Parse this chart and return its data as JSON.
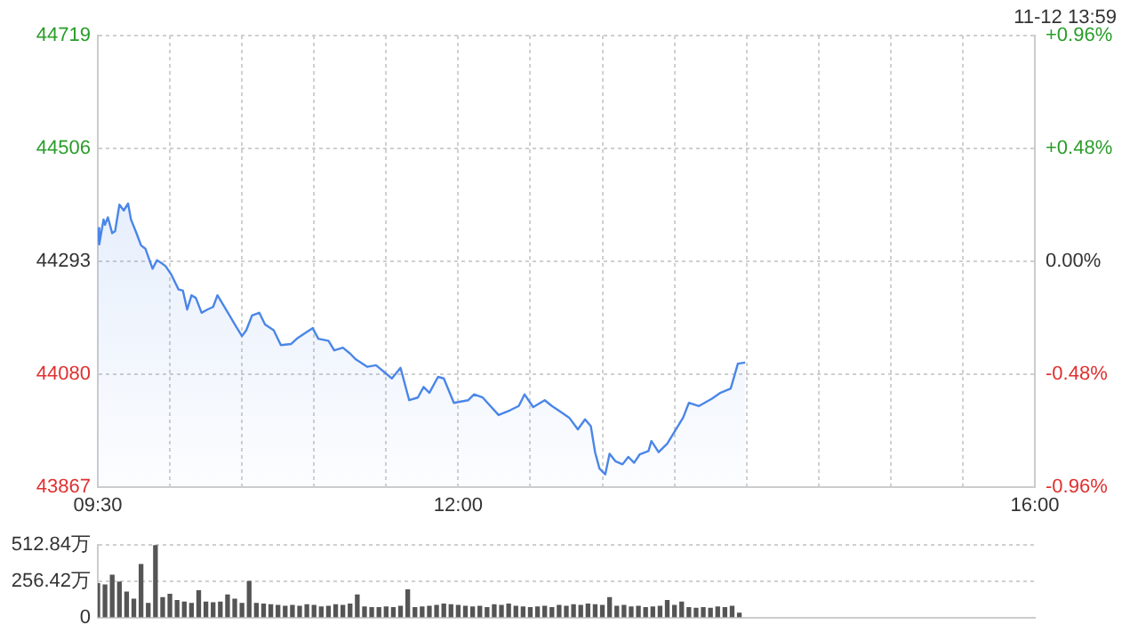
{
  "chart_data": [
    {
      "type": "area",
      "annotations": [
        "11-12 13:59"
      ],
      "x": [
        9.5,
        9.51,
        9.54,
        9.55,
        9.57,
        9.6,
        9.62,
        9.65,
        9.68,
        9.71,
        9.73,
        9.77,
        9.8,
        9.83,
        9.88,
        9.91,
        9.94,
        9.97,
        10.01,
        10.06,
        10.09,
        10.12,
        10.15,
        10.18,
        10.22,
        10.26,
        10.3,
        10.33,
        10.39,
        10.45,
        10.5,
        10.53,
        10.57,
        10.62,
        10.66,
        10.72,
        10.77,
        10.84,
        10.88,
        10.94,
        10.99,
        11.03,
        11.1,
        11.14,
        11.2,
        11.25,
        11.29,
        11.37,
        11.43,
        11.54,
        11.6,
        11.66,
        11.72,
        11.76,
        11.8,
        11.86,
        11.9,
        11.97,
        12.01,
        12.07,
        12.11,
        12.17,
        12.28,
        12.36,
        12.42,
        12.46,
        12.52,
        12.6,
        12.65,
        12.71,
        12.77,
        12.83,
        12.88,
        12.92,
        12.95,
        12.98,
        13.02,
        13.05,
        13.09,
        13.14,
        13.18,
        13.22,
        13.26,
        13.32,
        13.34,
        13.39,
        13.45,
        13.51,
        13.56,
        13.6,
        13.67,
        13.76,
        13.82,
        13.89,
        13.92,
        13.94,
        13.99
      ],
      "series": [
        {
          "color": "#4a86e8",
          "values": [
            44356,
            44325,
            44372,
            44362,
            44376,
            44346,
            44350,
            44400,
            44389,
            44402,
            44372,
            44345,
            44323,
            44317,
            44279,
            44295,
            44290,
            44284,
            44268,
            44240,
            44238,
            44202,
            44229,
            44224,
            44196,
            44202,
            44207,
            44229,
            44202,
            44174,
            44152,
            44163,
            44191,
            44196,
            44174,
            44163,
            44135,
            44137,
            44147,
            44158,
            44167,
            44147,
            44143,
            44125,
            44130,
            44119,
            44108,
            44094,
            44097,
            44072,
            44092,
            44031,
            44036,
            44056,
            44045,
            44075,
            44072,
            44026,
            44028,
            44031,
            44042,
            44036,
            44003,
            44012,
            44020,
            44042,
            44018,
            44031,
            44020,
            44009,
            43998,
            43976,
            43995,
            43982,
            43932,
            43902,
            43891,
            43930,
            43916,
            43910,
            43924,
            43913,
            43929,
            43935,
            43954,
            43933,
            43949,
            43976,
            43998,
            44026,
            44020,
            44034,
            44045,
            44053,
            44081,
            44100,
            44102
          ]
        }
      ],
      "xlim": [
        9.5,
        16
      ],
      "xticks": [
        {
          "value": 9.5,
          "label": "09:30"
        },
        {
          "value": 10,
          "label": null
        },
        {
          "value": 10.5,
          "label": null
        },
        {
          "value": 11,
          "label": null
        },
        {
          "value": 11.5,
          "label": null
        },
        {
          "value": 12,
          "label": "12:00"
        },
        {
          "value": 12.5,
          "label": null
        },
        {
          "value": 13,
          "label": null
        },
        {
          "value": 13.5,
          "label": null
        },
        {
          "value": 14,
          "label": null
        },
        {
          "value": 14.5,
          "label": null
        },
        {
          "value": 15,
          "label": null
        },
        {
          "value": 15.5,
          "label": null
        },
        {
          "value": 16,
          "label": "16:00"
        }
      ],
      "ylim": [
        43867,
        44719
      ],
      "yticks": [
        43867,
        44080,
        44293,
        44506,
        44719
      ],
      "y2lim": [
        -0.96,
        0.96
      ],
      "y2ticks": [
        {
          "value": -0.96,
          "label": "-0.96%"
        },
        {
          "value": -0.48,
          "label": "-0.48%"
        },
        {
          "value": 0,
          "label": "0.00%"
        },
        {
          "value": 0.48,
          "label": "+0.48%"
        },
        {
          "value": 0.96,
          "label": "+0.96%"
        }
      ],
      "grid": true,
      "marker": "none"
    },
    {
      "type": "bar",
      "tick_labels": "y",
      "grid": "y",
      "xlim": [
        9.5,
        16
      ],
      "x": [
        9.5,
        9.55,
        9.6,
        9.65,
        9.7,
        9.75,
        9.8,
        9.85,
        9.9,
        9.95,
        10,
        10.05,
        10.1,
        10.15,
        10.2,
        10.25,
        10.3,
        10.35,
        10.4,
        10.45,
        10.5,
        10.55,
        10.6,
        10.65,
        10.7,
        10.75,
        10.8,
        10.85,
        10.9,
        10.95,
        11,
        11.05,
        11.1,
        11.15,
        11.2,
        11.25,
        11.3,
        11.35,
        11.4,
        11.45,
        11.5,
        11.55,
        11.6,
        11.65,
        11.7,
        11.75,
        11.8,
        11.85,
        11.9,
        11.95,
        12,
        12.05,
        12.1,
        12.15,
        12.2,
        12.25,
        12.3,
        12.35,
        12.4,
        12.45,
        12.5,
        12.55,
        12.6,
        12.65,
        12.7,
        12.75,
        12.8,
        12.85,
        12.9,
        12.95,
        13,
        13.05,
        13.1,
        13.15,
        13.2,
        13.25,
        13.3,
        13.35,
        13.4,
        13.45,
        13.5,
        13.55,
        13.6,
        13.65,
        13.7,
        13.75,
        13.8,
        13.85,
        13.9,
        13.95
      ],
      "series": [
        {
          "color": "#555555",
          "values": [
            240,
            230,
            300,
            250,
            180,
            130,
            375,
            100,
            510,
            140,
            165,
            120,
            110,
            100,
            190,
            110,
            105,
            110,
            160,
            130,
            100,
            255,
            100,
            95,
            90,
            85,
            80,
            85,
            80,
            90,
            85,
            75,
            80,
            90,
            85,
            95,
            160,
            75,
            70,
            70,
            75,
            70,
            80,
            195,
            70,
            75,
            80,
            85,
            95,
            90,
            85,
            80,
            75,
            80,
            70,
            90,
            85,
            95,
            80,
            75,
            70,
            75,
            80,
            70,
            85,
            80,
            90,
            85,
            95,
            90,
            85,
            140,
            80,
            85,
            75,
            80,
            70,
            75,
            80,
            120,
            85,
            110,
            70,
            65,
            70,
            65,
            75,
            70,
            80,
            30
          ]
        }
      ],
      "ylim": [
        0,
        512.84
      ],
      "yticks": [
        0,
        {
          "value": 256.42,
          "label": "256.42万"
        },
        {
          "value": 512.84,
          "label": "512.84万"
        }
      ]
    }
  ]
}
